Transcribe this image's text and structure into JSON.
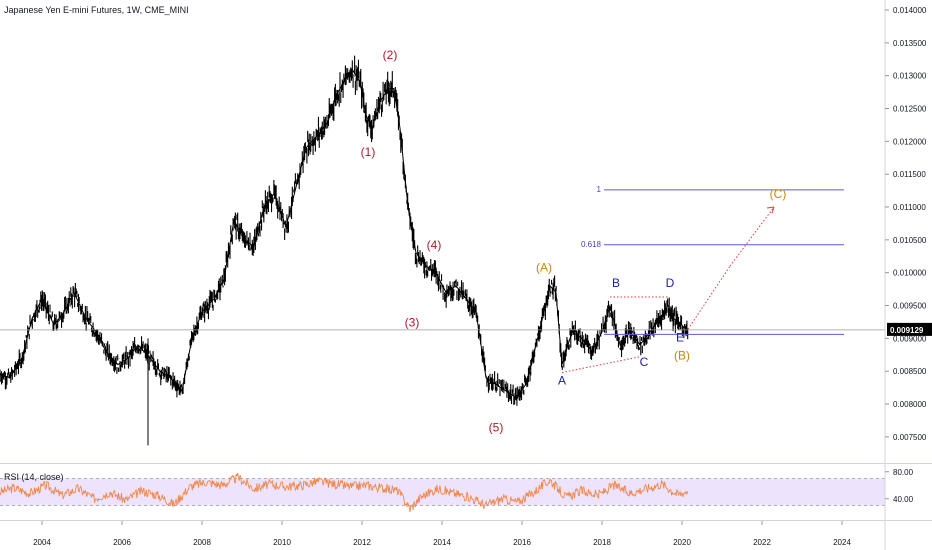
{
  "header": {
    "title": "Japanese Yen E-mini Futures, 1W, CME_MINI"
  },
  "rsi": {
    "label": "RSI (14, close)"
  },
  "colors": {
    "price": "#000000",
    "wave_red": "#b2182b",
    "wave_orange": "#c8860a",
    "wave_blue": "#1c1cae",
    "fib_line": "#5b5bdc",
    "dotted": "#e53935",
    "rsi_line": "#f0884a",
    "rsi_band": "#e9dcfb",
    "last_price_bg": "#000000",
    "last_price_text": "#ffffff"
  },
  "chart_data": [
    {
      "type": "line",
      "title": "Japanese Yen E-mini Futures, 1W, CME_MINI",
      "xlabel": "",
      "ylabel": "",
      "x_ticks": [
        "2004",
        "2006",
        "2008",
        "2010",
        "2012",
        "2014",
        "2016",
        "2018",
        "2020",
        "2022",
        "2024"
      ],
      "xlim": [
        2002.95,
        2024.95
      ],
      "y_ticks": [
        "0.007500",
        "0.008000",
        "0.008500",
        "0.009000",
        "0.009500",
        "0.010000",
        "0.010500",
        "0.011000",
        "0.011500",
        "0.012000",
        "0.012500",
        "0.013000",
        "0.013500",
        "0.014000"
      ],
      "ylim": [
        0.007102,
        0.014152
      ],
      "last_price": "0.009129",
      "grid": false,
      "series": [
        {
          "x": [
            2002.95,
            2003.2,
            2003.5,
            2003.75,
            2004.0,
            2004.3,
            2004.55,
            2004.8,
            2005.1,
            2005.35,
            2005.6,
            2005.9,
            2006.15,
            2006.4,
            2006.7,
            2006.95,
            2007.2,
            2007.5,
            2007.75,
            2008.0,
            2008.3,
            2008.55,
            2008.8,
            2009.05,
            2009.3,
            2009.55,
            2009.8,
            2010.1,
            2010.35,
            2010.6,
            2010.9,
            2011.15,
            2011.35,
            2011.55,
            2011.75,
            2011.95,
            2012.1,
            2012.25,
            2012.45,
            2012.65,
            2012.8,
            2012.95,
            2013.15,
            2013.35,
            2013.6,
            2013.85,
            2014.1,
            2014.35,
            2014.6,
            2014.85,
            2015.1,
            2015.35,
            2015.6,
            2015.85,
            2016.1,
            2016.35,
            2016.55,
            2016.7,
            2016.85,
            2017.0,
            2017.25,
            2017.5,
            2017.75,
            2018.0,
            2018.2,
            2018.45,
            2018.7,
            2018.95,
            2019.2,
            2019.45,
            2019.65,
            2019.8,
            2020.0,
            2020.15
          ],
          "values": [
            0.00845,
            0.0084,
            0.0087,
            0.0093,
            0.0096,
            0.0092,
            0.0094,
            0.0097,
            0.0093,
            0.0091,
            0.0088,
            0.0086,
            0.0087,
            0.0089,
            0.0087,
            0.0085,
            0.0084,
            0.0082,
            0.009,
            0.0094,
            0.0096,
            0.0099,
            0.0108,
            0.0105,
            0.0104,
            0.011,
            0.0112,
            0.0107,
            0.0113,
            0.0119,
            0.0121,
            0.0123,
            0.0127,
            0.0129,
            0.0131,
            0.0129,
            0.0124,
            0.0122,
            0.0126,
            0.0128,
            0.0128,
            0.0122,
            0.011,
            0.0103,
            0.0101,
            0.01,
            0.0097,
            0.0098,
            0.0096,
            0.0094,
            0.0084,
            0.0083,
            0.0082,
            0.0081,
            0.0083,
            0.0089,
            0.0094,
            0.0098,
            0.0097,
            0.0086,
            0.0091,
            0.009,
            0.0088,
            0.0091,
            0.0095,
            0.0089,
            0.0091,
            0.0089,
            0.0091,
            0.0093,
            0.0095,
            0.0093,
            0.0092,
            0.0091
          ]
        }
      ],
      "spike": {
        "x": 2006.65,
        "low": 0.00737,
        "high": 0.009
      },
      "fib_levels": [
        {
          "label": "1",
          "y": 0.011261,
          "x_start": 2018.05,
          "x_end": 2024.05
        },
        {
          "label": "0.618",
          "y": 0.010425,
          "x_start": 2018.05,
          "x_end": 2024.05
        },
        {
          "label": "",
          "y": 0.009061,
          "x_start": 2018.05,
          "x_end": 2024.05
        }
      ],
      "price_line": 0.009129,
      "dotted_lines": [
        {
          "x1": 2017.0,
          "y1": 0.00848,
          "x2": 2018.95,
          "y2": 0.00872
        },
        {
          "x1": 2018.2,
          "y1": 0.00963,
          "x2": 2019.65,
          "y2": 0.00963
        },
        {
          "x1": 2020.15,
          "y1": 0.00914,
          "x2": 2021.2,
          "y2": 0.0101
        },
        {
          "x1": 2021.2,
          "y1": 0.0101,
          "x2": 2022.3,
          "y2": 0.011
        }
      ],
      "wave_labels": [
        {
          "text": "(1)",
          "x": 2012.15,
          "y": 0.01178,
          "color": "red"
        },
        {
          "text": "(2)",
          "x": 2012.7,
          "y": 0.01325,
          "color": "red"
        },
        {
          "text": "(3)",
          "x": 2013.25,
          "y": 0.00918,
          "color": "red"
        },
        {
          "text": "(4)",
          "x": 2013.8,
          "y": 0.01036,
          "color": "red"
        },
        {
          "text": "(5)",
          "x": 2015.35,
          "y": 0.00758,
          "color": "red"
        },
        {
          "text": "(A)",
          "x": 2016.55,
          "y": 0.01002,
          "color": "orange"
        },
        {
          "text": "B",
          "x": 2018.35,
          "y": 0.00978,
          "color": "blue"
        },
        {
          "text": "D",
          "x": 2019.7,
          "y": 0.00978,
          "color": "blue"
        },
        {
          "text": "A",
          "x": 2017.0,
          "y": 0.0083,
          "color": "blue"
        },
        {
          "text": "C",
          "x": 2019.05,
          "y": 0.00858,
          "color": "blue"
        },
        {
          "text": "E",
          "x": 2019.95,
          "y": 0.00895,
          "color": "blue"
        },
        {
          "text": "(B)",
          "x": 2020.0,
          "y": 0.00868,
          "color": "orange"
        },
        {
          "text": "(C)",
          "x": 2022.4,
          "y": 0.01114,
          "color": "orange"
        }
      ]
    },
    {
      "type": "line",
      "title": "RSI (14, close)",
      "y_ticks": [
        "80.00",
        "40.00"
      ],
      "ylim": [
        10,
        90
      ],
      "band": [
        30,
        70
      ],
      "series": [
        {
          "x": [
            2002.95,
            2003.3,
            2003.7,
            2004.1,
            2004.5,
            2004.9,
            2005.3,
            2005.7,
            2006.1,
            2006.5,
            2006.9,
            2007.3,
            2007.7,
            2008.1,
            2008.5,
            2008.9,
            2009.3,
            2009.7,
            2010.1,
            2010.5,
            2010.9,
            2011.3,
            2011.7,
            2012.1,
            2012.5,
            2012.9,
            2013.2,
            2013.5,
            2013.9,
            2014.3,
            2014.7,
            2015.1,
            2015.5,
            2015.9,
            2016.3,
            2016.7,
            2017.1,
            2017.5,
            2017.9,
            2018.3,
            2018.7,
            2019.1,
            2019.5,
            2019.9,
            2020.15
          ],
          "values": [
            50,
            56,
            48,
            60,
            45,
            55,
            40,
            50,
            38,
            52,
            45,
            32,
            58,
            65,
            60,
            72,
            55,
            62,
            58,
            60,
            66,
            62,
            58,
            60,
            56,
            52,
            25,
            44,
            55,
            48,
            42,
            30,
            40,
            35,
            50,
            68,
            42,
            52,
            45,
            60,
            48,
            55,
            62,
            46,
            52
          ]
        }
      ]
    }
  ]
}
